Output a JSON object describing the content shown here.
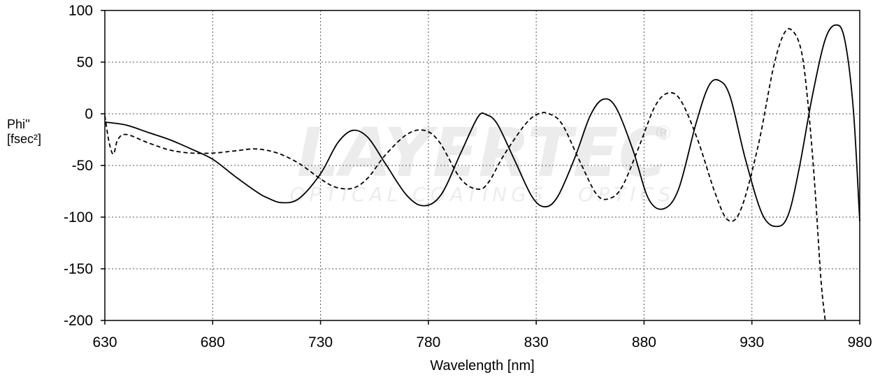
{
  "brand": {
    "logo_text": "LAYERTEC",
    "logo_tagline": "OPTICAL COATINGS · OPTICS",
    "logo_mark": "®"
  },
  "chart_data": {
    "type": "line",
    "xlabel": "Wavelength [nm]",
    "ylabel_line1": "Phi''",
    "ylabel_line2": "[fsec²]",
    "xlim": [
      630,
      980
    ],
    "ylim": [
      -200,
      100
    ],
    "x_ticks": [
      630,
      680,
      730,
      780,
      830,
      880,
      930,
      980
    ],
    "y_ticks": [
      100,
      50,
      0,
      -50,
      -100,
      -150,
      -200
    ],
    "grid": true,
    "legend": "none",
    "series": [
      {
        "style": "solid",
        "color": "#000000",
        "x": [
          630,
          640,
          650,
          660,
          670,
          680,
          690,
          700,
          705,
          712,
          720,
          730,
          738,
          745,
          752,
          760,
          770,
          778,
          786,
          795,
          803,
          807,
          812,
          820,
          828,
          834,
          840,
          848,
          855,
          861,
          867,
          875,
          882,
          889,
          896,
          904,
          910,
          915,
          920,
          927,
          935,
          942,
          947,
          952,
          958,
          964,
          969,
          973,
          977,
          980
        ],
        "y": [
          -8,
          -11,
          -18,
          -25,
          -34,
          -44,
          -60,
          -75,
          -81,
          -86,
          -82,
          -58,
          -28,
          -16,
          -23,
          -48,
          -79,
          -89,
          -78,
          -38,
          -3,
          -1,
          -10,
          -45,
          -80,
          -90,
          -80,
          -42,
          -2,
          14,
          6,
          -36,
          -82,
          -92,
          -73,
          -10,
          27,
          32,
          16,
          -44,
          -98,
          -109,
          -97,
          -52,
          17,
          72,
          86,
          72,
          5,
          -104
        ]
      },
      {
        "style": "dashed",
        "color": "#000000",
        "x": [
          630,
          632,
          634,
          636,
          640,
          650,
          660,
          670,
          680,
          690,
          700,
          710,
          720,
          730,
          737,
          745,
          752,
          760,
          770,
          778,
          785,
          795,
          803,
          808,
          815,
          825,
          831,
          836,
          842,
          850,
          858,
          864,
          870,
          878,
          885,
          891,
          897,
          905,
          913,
          919,
          925,
          933,
          940,
          945,
          949,
          953,
          956,
          959,
          962,
          964
        ],
        "y": [
          -2,
          -28,
          -39,
          -25,
          -20,
          -28,
          -35,
          -38,
          -38,
          -36,
          -34,
          -38,
          -48,
          -63,
          -71,
          -72,
          -62,
          -40,
          -20,
          -16,
          -27,
          -63,
          -73,
          -66,
          -40,
          -10,
          0,
          0,
          -10,
          -45,
          -78,
          -82,
          -70,
          -30,
          7,
          20,
          13,
          -26,
          -77,
          -103,
          -92,
          -30,
          45,
          78,
          80,
          60,
          10,
          -65,
          -160,
          -200
        ]
      }
    ]
  }
}
